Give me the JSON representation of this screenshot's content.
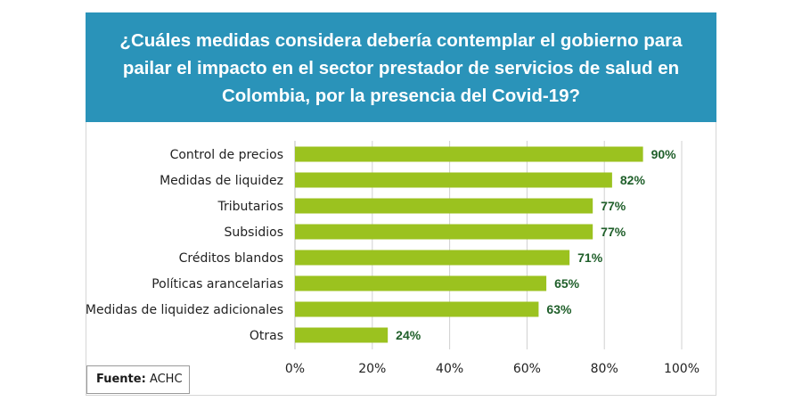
{
  "header": {
    "title_lines": [
      "¿Cuáles medidas considera debería contemplar el gobierno para",
      "pailar el impacto en el sector prestador de servicios de salud en",
      "Colombia, por la presencia del Covid-19?"
    ]
  },
  "source": {
    "label": "Fuente:",
    "value": "ACHC"
  },
  "colors": {
    "header_bg": "#2a93b9",
    "bar": "#9bc21f",
    "value_label": "#1f5f2a",
    "grid": "#d0d0d0"
  },
  "chart_data": {
    "type": "bar",
    "orientation": "horizontal",
    "title": "¿Cuáles medidas considera debería contemplar el gobierno para pailar el impacto en el sector prestador de servicios de salud en Colombia, por la presencia del Covid-19?",
    "categories": [
      "Control de precios",
      "Medidas de liquidez",
      "Tributarios",
      "Subsidios",
      "Créditos blandos",
      "Políticas arancelarias",
      "Medidas de liquidez adicionales",
      "Otras"
    ],
    "values": [
      90,
      82,
      77,
      77,
      71,
      65,
      63,
      24
    ],
    "value_labels": [
      "90%",
      "82%",
      "77%",
      "77%",
      "71%",
      "65%",
      "63%",
      "24%"
    ],
    "x_ticks": [
      0,
      20,
      40,
      60,
      80,
      100
    ],
    "x_tick_labels": [
      "0%",
      "20%",
      "40%",
      "60%",
      "80%",
      "100%"
    ],
    "xlim": [
      0,
      100
    ],
    "xlabel": "",
    "ylabel": "",
    "grid": true
  }
}
